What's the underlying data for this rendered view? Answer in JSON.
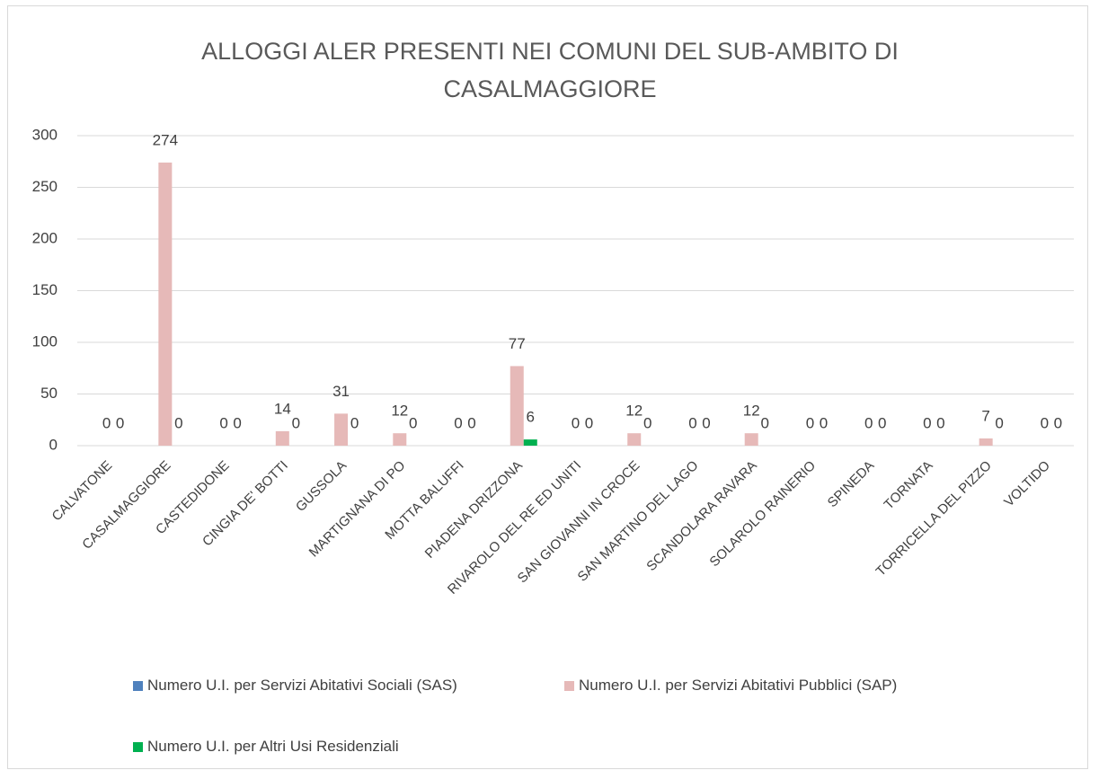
{
  "chart_data": {
    "type": "bar",
    "title": "ALLOGGI ALER PRESENTI NEI COMUNI DEL SUB-AMBITO DI CASALMAGGIORE",
    "categories": [
      "CALVATONE",
      "CASALMAGGIORE",
      "CASTEDIDONE",
      "CINGIA DE' BOTTI",
      "GUSSOLA",
      "MARTIGNANA DI PO",
      "MOTTA BALUFFI",
      "PIADENA DRIZZONA",
      "RIVAROLO DEL RE ED UNITI",
      "SAN GIOVANNI IN CROCE",
      "SAN MARTINO DEL LAGO",
      "SCANDOLARA RAVARA",
      "SOLAROLO RAINERIO",
      "SPINEDA",
      "TORNATA",
      "TORRICELLA DEL PIZZO",
      "VOLTIDO"
    ],
    "series": [
      {
        "name": "Numero U.I. per Servizi Abitativi Sociali (SAS)",
        "color": "#4f81bd",
        "data_labels": false,
        "values": [
          0,
          0,
          0,
          0,
          0,
          0,
          0,
          0,
          0,
          0,
          0,
          0,
          0,
          0,
          0,
          0,
          0
        ]
      },
      {
        "name": "Numero U.I. per Servizi Abitativi Pubblici (SAP)",
        "color": "#e6b9b8",
        "data_labels": true,
        "values": [
          0,
          274,
          0,
          14,
          31,
          12,
          0,
          77,
          0,
          12,
          0,
          12,
          0,
          0,
          0,
          7,
          0
        ]
      },
      {
        "name": "Numero U.I. per Altri Usi Residenziali",
        "color": "#00b050",
        "data_labels": true,
        "values": [
          0,
          0,
          0,
          0,
          0,
          0,
          0,
          6,
          0,
          0,
          0,
          0,
          0,
          0,
          0,
          0,
          0
        ]
      }
    ],
    "ylim": [
      0,
      300
    ],
    "yticks": [
      0,
      50,
      100,
      150,
      200,
      250,
      300
    ],
    "grid": true
  }
}
